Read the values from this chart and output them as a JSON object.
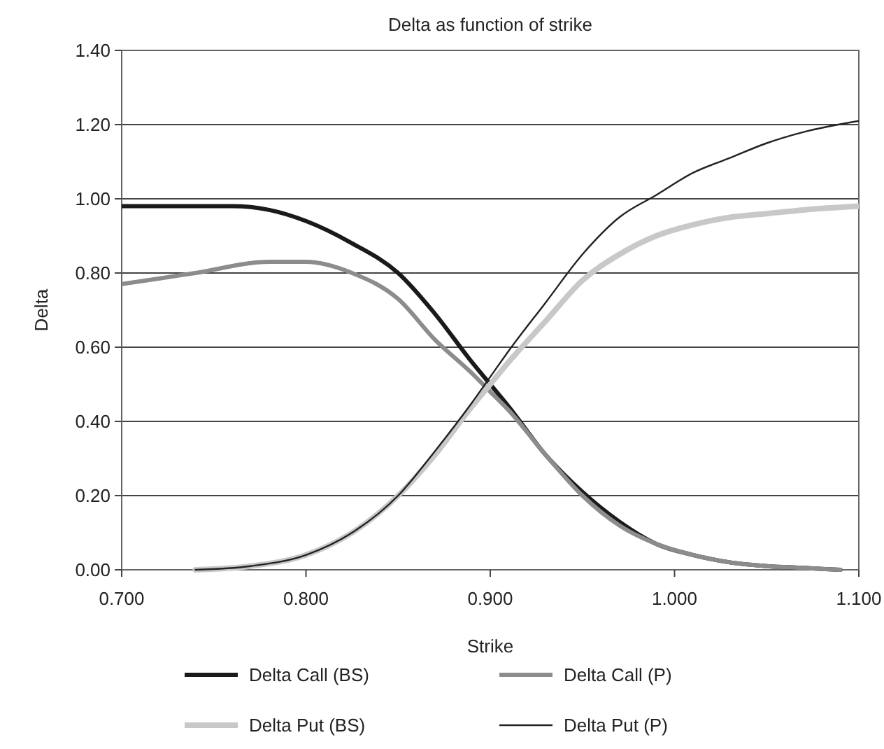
{
  "chart_data": {
    "type": "line",
    "title": "Delta as function of strike",
    "xlabel": "Strike",
    "ylabel": "Delta",
    "xlim": [
      0.7,
      1.1
    ],
    "xticks": [
      {
        "value": 0.7,
        "label": "0.700"
      },
      {
        "value": 0.8,
        "label": "0.800"
      },
      {
        "value": 0.9,
        "label": "0.900"
      },
      {
        "value": 1.0,
        "label": "1.000"
      },
      {
        "value": 1.1,
        "label": "1.100"
      }
    ],
    "ylim": [
      0,
      1.4
    ],
    "yticks": [
      {
        "value": 0,
        "label": "0.00"
      },
      {
        "value": 0.2,
        "label": "0.20"
      },
      {
        "value": 0.4,
        "label": "0.40"
      },
      {
        "value": 0.6,
        "label": "0.60"
      },
      {
        "value": 0.8,
        "label": "0.80"
      },
      {
        "value": 1.0,
        "label": "1.00"
      },
      {
        "value": 1.2,
        "label": "1.20"
      },
      {
        "value": 1.4,
        "label": "1.40"
      }
    ],
    "grid": "y",
    "legend": "bottom",
    "marker": "none",
    "line_style": "solid",
    "series": [
      {
        "name": "Delta Call (BS)",
        "color": "#1a1a1a",
        "x": [
          0.7,
          0.74,
          0.76,
          0.78,
          0.8,
          0.825,
          0.85,
          0.87,
          0.89,
          0.9,
          0.91,
          0.93,
          0.95,
          0.97,
          0.99,
          1.01,
          1.03,
          1.05,
          1.07,
          1.09
        ],
        "values": [
          0.98,
          0.98,
          0.98,
          0.97,
          0.94,
          0.88,
          0.8,
          0.69,
          0.56,
          0.5,
          0.44,
          0.31,
          0.21,
          0.13,
          0.07,
          0.04,
          0.02,
          0.01,
          0.005,
          0.0
        ]
      },
      {
        "name": "Delta Call (P)",
        "color": "#8c8c8c",
        "x": [
          0.7,
          0.74,
          0.78,
          0.8,
          0.825,
          0.85,
          0.87,
          0.89,
          0.9,
          0.91,
          0.93,
          0.95,
          0.97,
          0.99,
          1.01,
          1.03,
          1.05,
          1.07,
          1.09
        ],
        "values": [
          0.77,
          0.8,
          0.83,
          0.83,
          0.8,
          0.73,
          0.62,
          0.53,
          0.48,
          0.43,
          0.31,
          0.2,
          0.12,
          0.07,
          0.04,
          0.02,
          0.01,
          0.005,
          0.0
        ]
      },
      {
        "name": "Delta Put (BS)",
        "color": "#c8c8c8",
        "x": [
          0.74,
          0.77,
          0.8,
          0.825,
          0.85,
          0.87,
          0.89,
          0.9,
          0.91,
          0.93,
          0.95,
          0.97,
          0.99,
          1.01,
          1.03,
          1.05,
          1.07,
          1.1
        ],
        "values": [
          0.0,
          0.01,
          0.04,
          0.1,
          0.2,
          0.31,
          0.44,
          0.5,
          0.56,
          0.67,
          0.78,
          0.85,
          0.9,
          0.93,
          0.95,
          0.96,
          0.97,
          0.98
        ]
      },
      {
        "name": "Delta Put (P)",
        "color": "#222222",
        "x": [
          0.74,
          0.77,
          0.8,
          0.825,
          0.85,
          0.87,
          0.89,
          0.9,
          0.91,
          0.93,
          0.95,
          0.97,
          0.99,
          1.01,
          1.03,
          1.05,
          1.07,
          1.1
        ],
        "values": [
          0.0,
          0.01,
          0.04,
          0.1,
          0.2,
          0.32,
          0.45,
          0.52,
          0.59,
          0.72,
          0.85,
          0.95,
          1.01,
          1.07,
          1.11,
          1.15,
          1.18,
          1.21
        ]
      }
    ]
  }
}
